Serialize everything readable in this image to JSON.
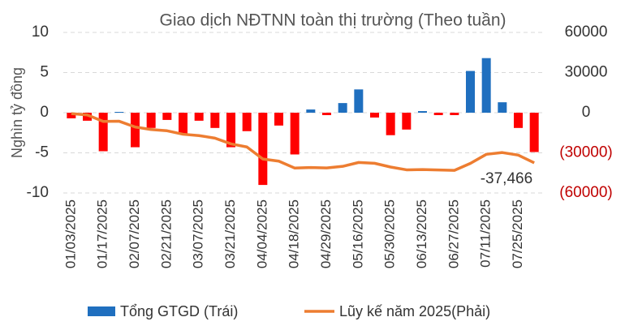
{
  "chart_data": {
    "type": "bar",
    "title": "Giao dịch NĐTNN toàn thị trường (Theo tuần)",
    "y_label": "Nghìn tỷ đồng",
    "categories": [
      "01/03/2025",
      null,
      "01/17/2025",
      null,
      "02/07/2025",
      null,
      "02/21/2025",
      null,
      "03/07/2025",
      null,
      "03/21/2025",
      null,
      "04/04/2025",
      null,
      "04/18/2025",
      null,
      "04/29/2025",
      null,
      "05/16/2025",
      null,
      "05/30/2025",
      null,
      "06/13/2025",
      null,
      "06/27/2025",
      null,
      "07/11/2025",
      null,
      "07/25/2025",
      null
    ],
    "series": [
      {
        "name": "Tổng GTGD (Trái)",
        "color": "#1f6fbf",
        "negative_color": "#ff0000",
        "axis": "y",
        "values": [
          -0.7,
          -1.0,
          -4.8,
          0.1,
          -4.3,
          -1.9,
          -0.9,
          -2.6,
          -1.0,
          -1.9,
          -4.3,
          -2.3,
          -9.0,
          -1.6,
          -5.2,
          0.4,
          -0.3,
          1.2,
          2.9,
          -0.6,
          -2.8,
          -2.1,
          0.2,
          -0.3,
          -0.3,
          5.2,
          6.8,
          1.3,
          -1.9,
          -4.9
        ]
      },
      {
        "name": "Lũy kế năm 2025(Phải)",
        "color": "#ed7d31",
        "axis": "y2",
        "type": "line",
        "values": [
          -700,
          -1700,
          -6500,
          -6400,
          -10700,
          -12600,
          -13500,
          -16100,
          -17100,
          -19000,
          -23300,
          -25600,
          -34600,
          -36200,
          -41400,
          -41000,
          -41300,
          -40100,
          -37200,
          -37800,
          -40600,
          -42700,
          -42500,
          -42800,
          -43100,
          -37900,
          -31100,
          -29800,
          -31700,
          -37466
        ],
        "value_labels": [
          null,
          null,
          null,
          null,
          null,
          null,
          null,
          null,
          null,
          null,
          null,
          null,
          null,
          null,
          null,
          null,
          null,
          null,
          null,
          null,
          null,
          null,
          null,
          null,
          null,
          null,
          null,
          null,
          null,
          "-37,466"
        ]
      }
    ],
    "ylim": [
      -10,
      10
    ],
    "yticks": [
      10,
      5,
      0,
      -5,
      -10
    ],
    "y2lim": [
      -60000,
      60000
    ],
    "y2ticks": [
      60000,
      30000,
      0,
      {
        "value": -30000,
        "label": "(30000)"
      },
      {
        "value": -60000,
        "label": "(60000)"
      }
    ],
    "y2_negative_label_color": "#c00000",
    "grid": true,
    "legend": "bottom"
  }
}
